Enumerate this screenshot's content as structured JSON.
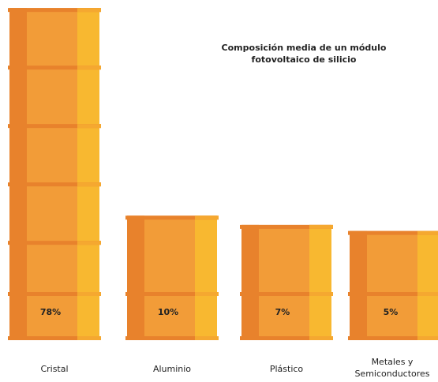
{
  "chart_data": {
    "type": "bar",
    "title": "Composición media de un módulo fotovoltaico de silicio",
    "categories": [
      "Cristal",
      "Aluminio",
      "Plástico",
      "Metales y Semiconductores"
    ],
    "values": [
      78,
      10,
      7,
      5
    ],
    "value_labels": [
      "78%",
      "10%",
      "7%",
      "5%"
    ],
    "color": "#f29c38"
  }
}
